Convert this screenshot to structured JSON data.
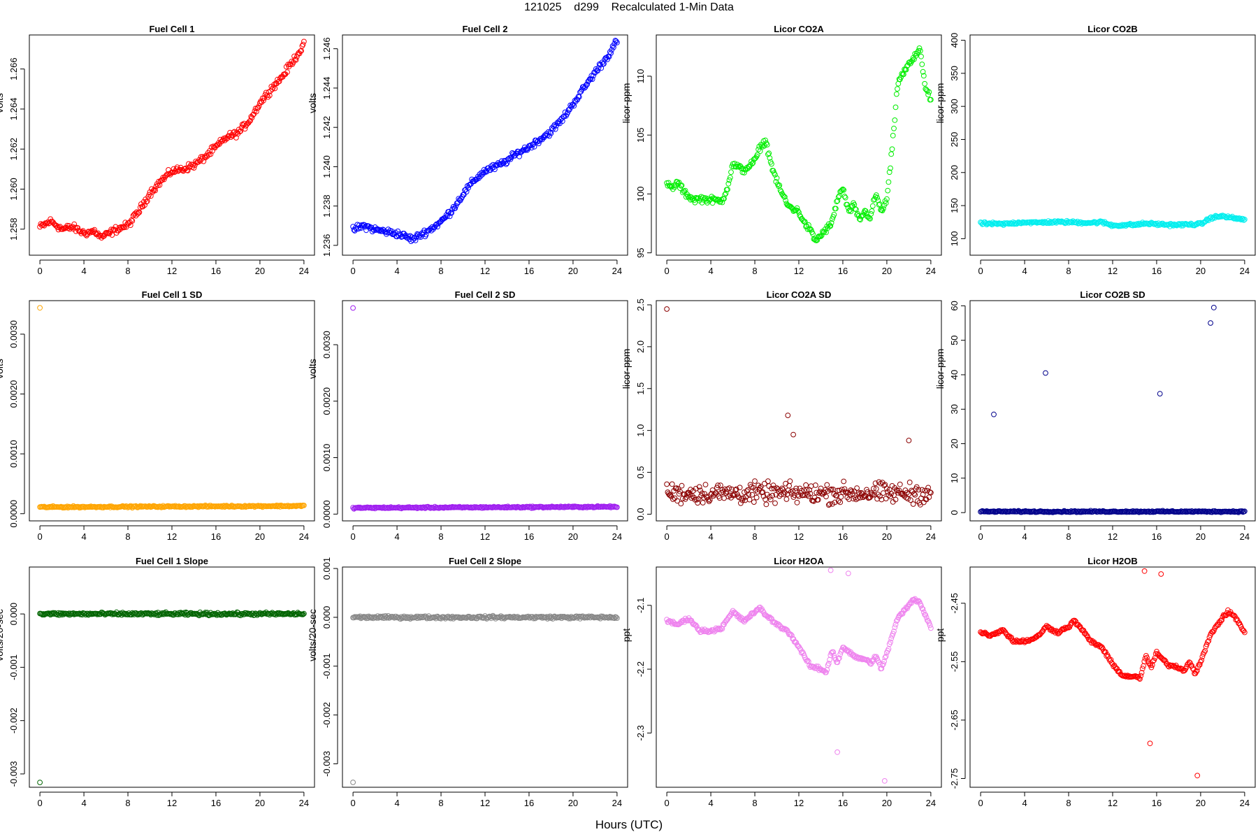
{
  "figure": {
    "title": "121025    d299    Recalculated 1-Min Data",
    "xlabel": "Hours (UTC)"
  },
  "chart_data": [
    {
      "type": "scatter",
      "title": "Fuel Cell 1",
      "ylabel": "volts",
      "color": "#ff0000",
      "xlim": [
        -0.96,
        24.96
      ],
      "ylim": [
        1.2567,
        1.2677
      ],
      "xticks": [
        0,
        4,
        8,
        12,
        16,
        20,
        24
      ],
      "xtick_labels": [
        "0",
        "4",
        "8",
        "12",
        "16",
        "20",
        "24"
      ],
      "yticks": [
        1.258,
        1.26,
        1.262,
        1.264,
        1.266
      ],
      "ytick_labels": [
        "1.258",
        "1.260",
        "1.262",
        "1.264",
        "1.266"
      ],
      "series": [
        {
          "x": [
            0,
            1,
            2,
            3,
            4,
            5,
            5.5,
            6,
            7,
            8,
            9,
            10,
            11,
            12,
            13,
            14,
            15,
            16,
            17,
            18,
            19,
            20,
            21,
            22,
            23,
            24
          ],
          "y": [
            1.2581,
            1.2584,
            1.258,
            1.2581,
            1.2578,
            1.2579,
            1.2576,
            1.2577,
            1.258,
            1.2582,
            1.2589,
            1.2598,
            1.2604,
            1.2609,
            1.261,
            1.2612,
            1.2616,
            1.2621,
            1.2626,
            1.2628,
            1.2634,
            1.2643,
            1.265,
            1.2656,
            1.2664,
            1.2672
          ],
          "spread": 0.00025
        }
      ]
    },
    {
      "type": "scatter",
      "title": "Fuel Cell 2",
      "ylabel": "volts",
      "color": "#0000ff",
      "xlim": [
        -0.96,
        24.96
      ],
      "ylim": [
        1.2355,
        1.2467
      ],
      "xticks": [
        0,
        4,
        8,
        12,
        16,
        20,
        24
      ],
      "xtick_labels": [
        "0",
        "4",
        "8",
        "12",
        "16",
        "20",
        "24"
      ],
      "yticks": [
        1.236,
        1.238,
        1.24,
        1.242,
        1.244,
        1.246
      ],
      "ytick_labels": [
        "1.236",
        "1.238",
        "1.240",
        "1.242",
        "1.244",
        "1.246"
      ],
      "series": [
        {
          "x": [
            0,
            1,
            2,
            3,
            4,
            5,
            5.5,
            6,
            7,
            8,
            9,
            10,
            11,
            12,
            13,
            14,
            15,
            16,
            17,
            18,
            19,
            20,
            21,
            22,
            23,
            24
          ],
          "y": [
            1.2368,
            1.237,
            1.2368,
            1.2367,
            1.2366,
            1.2364,
            1.2363,
            1.2365,
            1.2368,
            1.2372,
            1.2378,
            1.2386,
            1.2393,
            1.2398,
            1.24,
            1.2403,
            1.2407,
            1.241,
            1.2414,
            1.2418,
            1.2424,
            1.2432,
            1.244,
            1.2448,
            1.2455,
            1.2464
          ],
          "spread": 0.00025
        }
      ]
    },
    {
      "type": "scatter",
      "title": "Licor CO2A",
      "ylabel": "licor-ppm",
      "color": "#00ee00",
      "xlim": [
        -0.96,
        24.96
      ],
      "ylim": [
        94.8,
        113.5
      ],
      "xticks": [
        0,
        4,
        8,
        12,
        16,
        20,
        24
      ],
      "xtick_labels": [
        "0",
        "4",
        "8",
        "12",
        "16",
        "20",
        "24"
      ],
      "yticks": [
        95,
        100,
        105,
        110
      ],
      "ytick_labels": [
        "95",
        "100",
        "105",
        "110"
      ],
      "series": [
        {
          "x": [
            0,
            0.5,
            1,
            1.5,
            2,
            2.5,
            3,
            4,
            5,
            5.5,
            6,
            7,
            8,
            8.5,
            9,
            9.5,
            10,
            11,
            12,
            12.5,
            13,
            13.5,
            14,
            15,
            15.5,
            16,
            16.5,
            17,
            17.5,
            18,
            18.5,
            19,
            19.5,
            20,
            20.5,
            21,
            22,
            22.5,
            23,
            23.5,
            24
          ],
          "y": [
            100.8,
            100.5,
            101.0,
            100.2,
            99.8,
            99.5,
            99.6,
            99.5,
            99.4,
            100.5,
            102.5,
            102.0,
            102.8,
            104.0,
            104.5,
            102.5,
            101.0,
            99.0,
            98.5,
            97.5,
            97.0,
            96.0,
            96.5,
            97.5,
            99.5,
            100.5,
            98.5,
            99.0,
            97.8,
            98.5,
            98.0,
            100.0,
            98.5,
            99.5,
            104.0,
            109.5,
            111.0,
            111.5,
            112.5,
            109.0,
            108.0
          ],
          "spread": 0.4
        }
      ]
    },
    {
      "type": "scatter",
      "title": "Licor CO2B",
      "ylabel": "licor-ppm",
      "color": "#00eeee",
      "xlim": [
        -0.96,
        24.96
      ],
      "ylim": [
        75,
        408
      ],
      "xticks": [
        0,
        4,
        8,
        12,
        16,
        20,
        24
      ],
      "xtick_labels": [
        "0",
        "4",
        "8",
        "12",
        "16",
        "20",
        "24"
      ],
      "yticks": [
        100,
        150,
        200,
        250,
        300,
        350,
        400
      ],
      "ytick_labels": [
        "100",
        "150",
        "200",
        "250",
        "300",
        "350",
        "400"
      ],
      "series": [
        {
          "x": [
            0,
            2,
            4,
            5,
            6,
            8,
            10,
            11,
            12,
            14,
            15,
            16,
            17,
            18,
            20,
            21,
            22,
            23,
            24
          ],
          "y": [
            123,
            122,
            125,
            124,
            125,
            125,
            124,
            125,
            120,
            121,
            123,
            122,
            121,
            121,
            122,
            132,
            134,
            131,
            129
          ],
          "spread": 3
        }
      ]
    },
    {
      "type": "scatter",
      "title": "Fuel Cell 1 SD",
      "ylabel": "volts",
      "color": "#ffa500",
      "xlim": [
        -0.96,
        24.96
      ],
      "ylim": [
        -0.00012,
        0.00356
      ],
      "xticks": [
        0,
        4,
        8,
        12,
        16,
        20,
        24
      ],
      "xtick_labels": [
        "0",
        "4",
        "8",
        "12",
        "16",
        "20",
        "24"
      ],
      "yticks": [
        0,
        0.001,
        0.002,
        0.003
      ],
      "ytick_labels": [
        "0.0000",
        "0.0010",
        "0.0020",
        "0.0030"
      ],
      "series": [
        {
          "x": [
            0,
            24
          ],
          "y": [
            0.00011,
            0.00013
          ],
          "spread": 2e-05
        }
      ],
      "outliers": [
        [
          0,
          0.00344
        ]
      ]
    },
    {
      "type": "scatter",
      "title": "Fuel Cell 2 SD",
      "ylabel": "volts",
      "color": "#a020f0",
      "xlim": [
        -0.96,
        24.96
      ],
      "ylim": [
        -0.00012,
        0.00378
      ],
      "xticks": [
        0,
        4,
        8,
        12,
        16,
        20,
        24
      ],
      "xtick_labels": [
        "0",
        "4",
        "8",
        "12",
        "16",
        "20",
        "24"
      ],
      "yticks": [
        0,
        0.001,
        0.002,
        0.003
      ],
      "ytick_labels": [
        "0.0000",
        "0.0010",
        "0.0020",
        "0.0030"
      ],
      "series": [
        {
          "x": [
            0,
            24
          ],
          "y": [
            0.00011,
            0.00013
          ],
          "spread": 2e-05
        }
      ],
      "outliers": [
        [
          0,
          0.00365
        ]
      ]
    },
    {
      "type": "scatter",
      "title": "Licor CO2A SD",
      "ylabel": "licor-ppm",
      "color": "#8b0000",
      "xlim": [
        -0.96,
        24.96
      ],
      "ylim": [
        -0.08,
        2.55
      ],
      "xticks": [
        0,
        4,
        8,
        12,
        16,
        20,
        24
      ],
      "xtick_labels": [
        "0",
        "4",
        "8",
        "12",
        "16",
        "20",
        "24"
      ],
      "yticks": [
        0,
        0.5,
        1,
        1.5,
        2,
        2.5
      ],
      "ytick_labels": [
        "0.0",
        "0.5",
        "1.0",
        "1.5",
        "2.0",
        "2.5"
      ],
      "series": [
        {
          "x": [
            0,
            24
          ],
          "y": [
            0.25,
            0.25
          ],
          "spread": 0.18
        }
      ],
      "outliers": [
        [
          0,
          2.45
        ],
        [
          11.0,
          1.18
        ],
        [
          11.5,
          0.95
        ],
        [
          22.0,
          0.88
        ]
      ]
    },
    {
      "type": "scatter",
      "title": "Licor CO2B SD",
      "ylabel": "licor-ppm",
      "color": "#00008b",
      "xlim": [
        -0.96,
        24.96
      ],
      "ylim": [
        -2.4,
        61.5
      ],
      "xticks": [
        0,
        4,
        8,
        12,
        16,
        20,
        24
      ],
      "xtick_labels": [
        "0",
        "4",
        "8",
        "12",
        "16",
        "20",
        "24"
      ],
      "yticks": [
        0,
        10,
        20,
        30,
        40,
        50,
        60
      ],
      "ytick_labels": [
        "0",
        "10",
        "20",
        "30",
        "40",
        "50",
        "60"
      ],
      "series": [
        {
          "x": [
            0,
            24
          ],
          "y": [
            0.3,
            0.3
          ],
          "spread": 0.3
        }
      ],
      "outliers": [
        [
          5.9,
          40.5
        ],
        [
          20.9,
          55
        ],
        [
          21.2,
          59.5
        ],
        [
          1.2,
          28.5
        ],
        [
          16.3,
          34.5
        ]
      ]
    },
    {
      "type": "scatter",
      "title": "Fuel Cell 1 Slope",
      "ylabel": "volts/20-sec",
      "color": "#006400",
      "xlim": [
        -0.96,
        24.96
      ],
      "ylim": [
        -0.00325,
        0.00088
      ],
      "xticks": [
        0,
        4,
        8,
        12,
        16,
        20,
        24
      ],
      "xtick_labels": [
        "0",
        "4",
        "8",
        "12",
        "16",
        "20",
        "24"
      ],
      "yticks": [
        -0.003,
        -0.002,
        -0.001,
        0
      ],
      "ytick_labels": [
        "-0.003",
        "-0.002",
        "-0.001",
        "0.000"
      ],
      "series": [
        {
          "x": [
            0,
            24
          ],
          "y": [
            0,
            0
          ],
          "spread": 4e-05
        }
      ],
      "outliers": [
        [
          0,
          -0.00316
        ]
      ]
    },
    {
      "type": "scatter",
      "title": "Fuel Cell 2 Slope",
      "ylabel": "volts/20-sec",
      "color": "#888888",
      "xlim": [
        -0.96,
        24.96
      ],
      "ylim": [
        -0.00348,
        0.00103
      ],
      "xticks": [
        0,
        4,
        8,
        12,
        16,
        20,
        24
      ],
      "xtick_labels": [
        "0",
        "4",
        "8",
        "12",
        "16",
        "20",
        "24"
      ],
      "yticks": [
        -0.003,
        -0.002,
        -0.001,
        0,
        0.001
      ],
      "ytick_labels": [
        "-0.003",
        "-0.002",
        "-0.001",
        "0.000",
        "0.001"
      ],
      "series": [
        {
          "x": [
            0,
            24
          ],
          "y": [
            0,
            0
          ],
          "spread": 4e-05
        }
      ],
      "outliers": [
        [
          0,
          -0.00338
        ]
      ]
    },
    {
      "type": "scatter",
      "title": "Licor H2OA",
      "ylabel": "ppt",
      "color": "#ee82ee",
      "xlim": [
        -0.96,
        24.96
      ],
      "ylim": [
        -2.385,
        -2.04
      ],
      "xticks": [
        0,
        4,
        8,
        12,
        16,
        20,
        24
      ],
      "xtick_labels": [
        "0",
        "4",
        "8",
        "12",
        "16",
        "20",
        "24"
      ],
      "yticks": [
        -2.3,
        -2.2,
        -2.1
      ],
      "ytick_labels": [
        "-2.3",
        "-2.2",
        "-2.1"
      ],
      "series": [
        {
          "x": [
            0,
            1,
            2,
            3,
            4,
            5,
            6,
            7,
            8,
            8.5,
            9,
            10,
            11,
            12,
            13,
            14,
            14.5,
            15,
            15.5,
            16,
            17,
            18,
            18.5,
            19,
            19.5,
            20,
            21,
            22,
            22.5,
            23,
            24
          ],
          "y": [
            -2.125,
            -2.13,
            -2.12,
            -2.14,
            -2.14,
            -2.135,
            -2.11,
            -2.125,
            -2.11,
            -2.105,
            -2.115,
            -2.13,
            -2.14,
            -2.165,
            -2.195,
            -2.2,
            -2.205,
            -2.17,
            -2.19,
            -2.165,
            -2.18,
            -2.185,
            -2.19,
            -2.18,
            -2.2,
            -2.175,
            -2.12,
            -2.1,
            -2.09,
            -2.095,
            -2.135
          ],
          "spread": 0.004
        }
      ],
      "outliers": [
        [
          14.9,
          -2.045
        ],
        [
          16.5,
          -2.05
        ],
        [
          19.8,
          -2.375
        ],
        [
          15.5,
          -2.33
        ]
      ]
    },
    {
      "type": "scatter",
      "title": "Licor H2OB",
      "ylabel": "ppt",
      "color": "#ff0000",
      "xlim": [
        -0.96,
        24.96
      ],
      "ylim": [
        -2.765,
        -2.388
      ],
      "xticks": [
        0,
        4,
        8,
        12,
        16,
        20,
        24
      ],
      "xtick_labels": [
        "0",
        "4",
        "8",
        "12",
        "16",
        "20",
        "24"
      ],
      "yticks": [
        -2.75,
        -2.65,
        -2.55,
        -2.45
      ],
      "ytick_labels": [
        "-2.75",
        "-2.65",
        "-2.55",
        "-2.45"
      ],
      "series": [
        {
          "x": [
            0,
            1,
            2,
            3,
            4,
            5,
            6,
            7,
            8,
            8.5,
            9,
            10,
            11,
            12,
            13,
            14,
            14.5,
            15,
            15.5,
            16,
            17,
            18,
            18.5,
            19,
            19.5,
            20,
            21,
            22,
            22.5,
            23,
            24
          ],
          "y": [
            -2.5,
            -2.505,
            -2.495,
            -2.515,
            -2.515,
            -2.51,
            -2.49,
            -2.5,
            -2.49,
            -2.48,
            -2.49,
            -2.515,
            -2.525,
            -2.555,
            -2.575,
            -2.575,
            -2.58,
            -2.54,
            -2.56,
            -2.535,
            -2.555,
            -2.56,
            -2.565,
            -2.55,
            -2.57,
            -2.55,
            -2.5,
            -2.475,
            -2.465,
            -2.47,
            -2.5
          ],
          "spread": 0.004
        }
      ],
      "outliers": [
        [
          14.9,
          -2.395
        ],
        [
          16.4,
          -2.4
        ],
        [
          19.7,
          -2.745
        ],
        [
          15.4,
          -2.69
        ]
      ]
    }
  ]
}
